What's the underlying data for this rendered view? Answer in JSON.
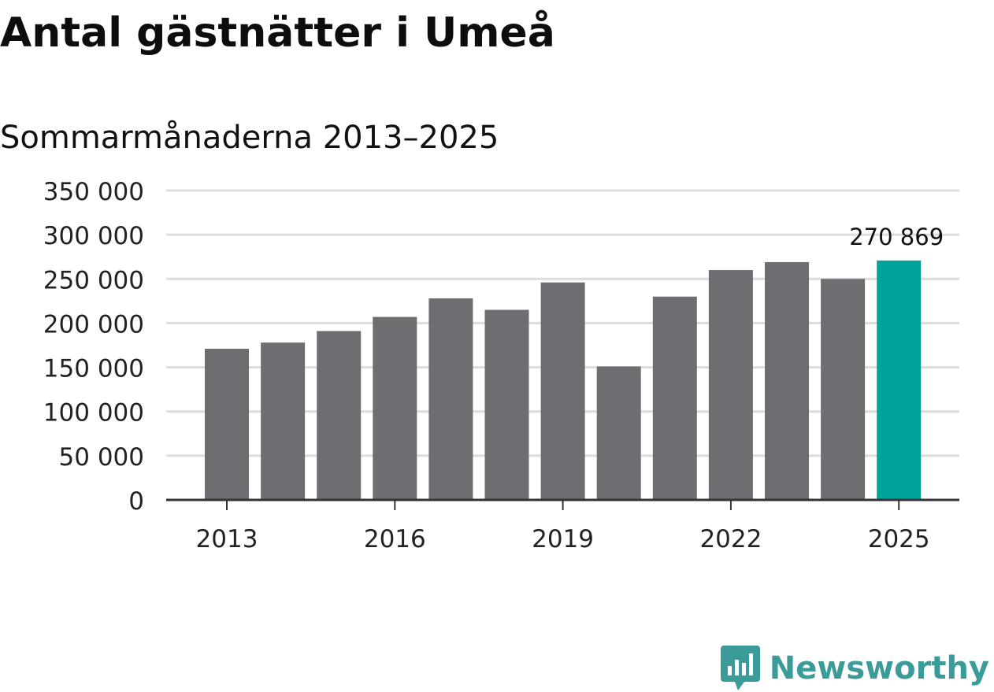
{
  "title": "Antal gästnätter i Umeå",
  "subtitle": "Sommarmånaderna 2013–2025",
  "brand": {
    "name": "Newsworthy",
    "logo_icon": "newsworthy-logo-icon"
  },
  "colors": {
    "bar": "#6e6d72",
    "highlight": "#00a39a",
    "grid": "#dcdcdc",
    "axis": "#333333",
    "brand": "#3a9b99"
  },
  "chart_data": {
    "type": "bar",
    "title": "Antal gästnätter i Umeå",
    "subtitle": "Sommarmånaderna 2013–2025",
    "xlabel": "",
    "ylabel": "",
    "categories": [
      "2013",
      "2014",
      "2015",
      "2016",
      "2017",
      "2018",
      "2019",
      "2020",
      "2021",
      "2022",
      "2023",
      "2024",
      "2025"
    ],
    "values": [
      171000,
      178000,
      191000,
      207000,
      228000,
      215000,
      246000,
      151000,
      230000,
      260000,
      269000,
      250000,
      270869
    ],
    "ylim": [
      0,
      350000
    ],
    "yticks": [
      0,
      50000,
      100000,
      150000,
      200000,
      250000,
      300000,
      350000
    ],
    "ytick_labels": [
      "0",
      "50 000",
      "100 000",
      "150 000",
      "200 000",
      "250 000",
      "300 000",
      "350 000"
    ],
    "xtick_labels": [
      "2013",
      "2016",
      "2019",
      "2022",
      "2025"
    ],
    "highlight_index": 12,
    "data_label": "270 869",
    "grid": true,
    "legend": "none"
  }
}
